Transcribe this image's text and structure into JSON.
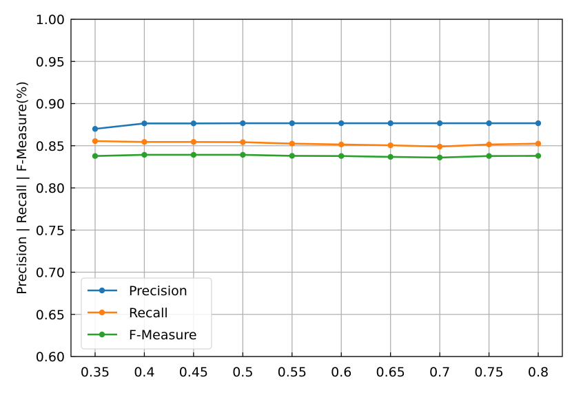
{
  "chart_data": {
    "type": "line",
    "title": "",
    "xlabel": "",
    "ylabel": "Precision | Recall | F-Measure(%)",
    "x": [
      0.35,
      0.4,
      0.45,
      0.5,
      0.55,
      0.6,
      0.65,
      0.7,
      0.75,
      0.8
    ],
    "x_tick_labels": [
      "0.35",
      "0.4",
      "0.45",
      "0.5",
      "0.55",
      "0.6",
      "0.65",
      "0.7",
      "0.75",
      "0.8"
    ],
    "y_tick_labels": [
      "0.60",
      "0.65",
      "0.70",
      "0.75",
      "0.80",
      "0.85",
      "0.90",
      "0.95",
      "1.00"
    ],
    "ylim": [
      0.6,
      1.0
    ],
    "grid": true,
    "legend_position": "bottom-left",
    "series": [
      {
        "name": "Precision",
        "color": "#1f77b4",
        "values": [
          0.87,
          0.8765,
          0.8765,
          0.8767,
          0.8767,
          0.8767,
          0.8767,
          0.8767,
          0.8767,
          0.8767
        ]
      },
      {
        "name": "Recall",
        "color": "#ff7f0e",
        "values": [
          0.8555,
          0.8545,
          0.8545,
          0.8542,
          0.8525,
          0.8515,
          0.8505,
          0.849,
          0.8515,
          0.8525
        ]
      },
      {
        "name": "F-Measure",
        "color": "#2ca02c",
        "values": [
          0.8378,
          0.8392,
          0.8392,
          0.8392,
          0.838,
          0.8378,
          0.8368,
          0.836,
          0.8378,
          0.838
        ]
      }
    ]
  }
}
